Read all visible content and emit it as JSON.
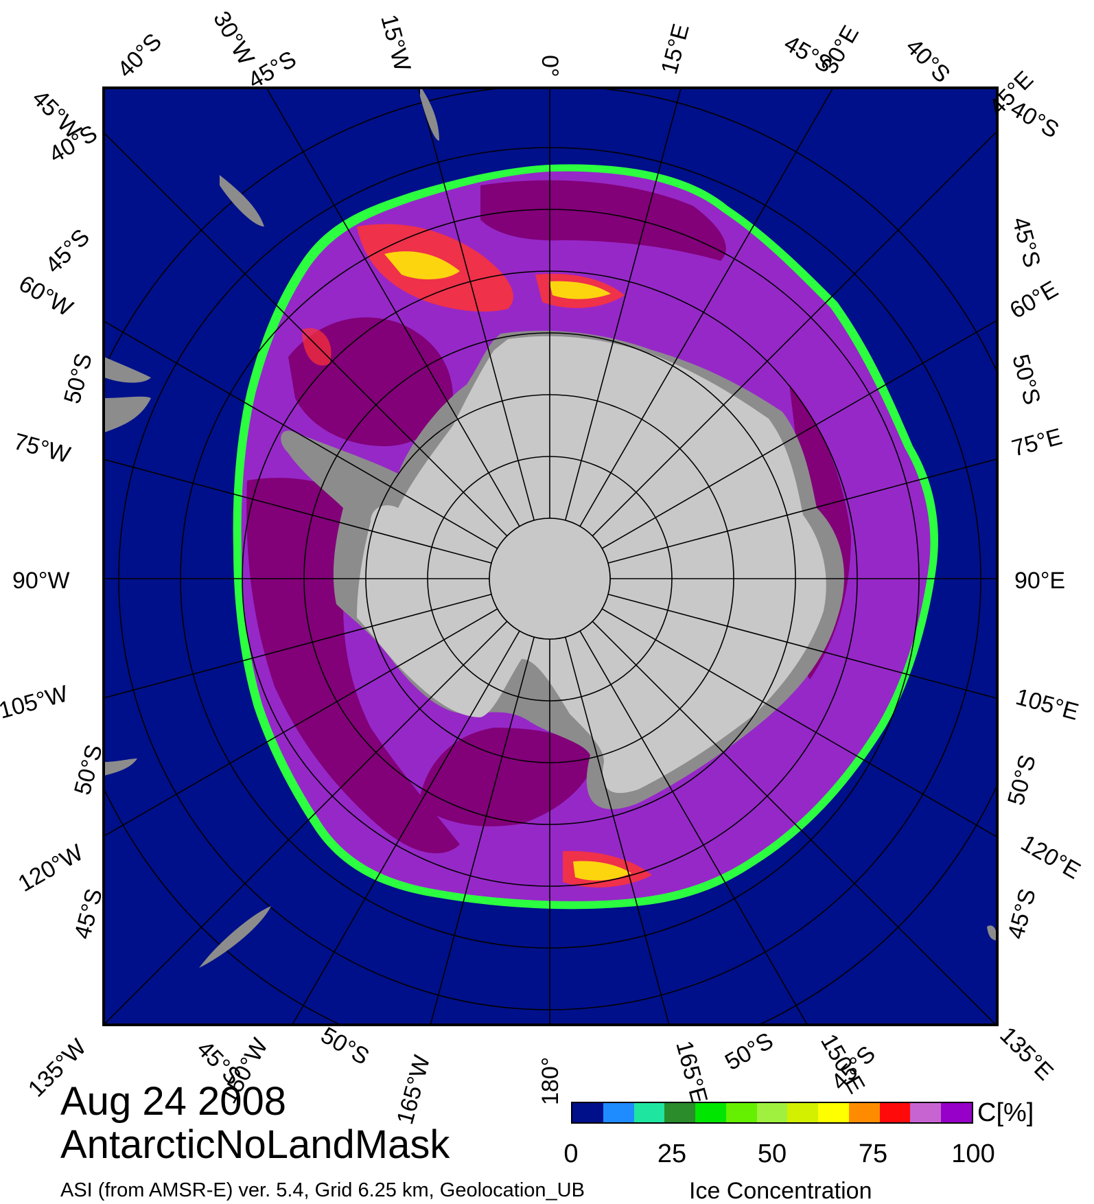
{
  "date_label": "Aug 24 2008",
  "product_label": "AntarcticNoLandMask",
  "footer_text": "ASI (from AMSR-E) ver. 5.4,  Grid 6.25 km, Geolocation_UB",
  "footer_title": "Ice Concentration",
  "colorbar": {
    "unit": "C[%]",
    "ticks": [
      "0",
      "25",
      "50",
      "75",
      "100"
    ],
    "colors": [
      "#00108a",
      "#1e8cff",
      "#1ee6a0",
      "#2a8c2a",
      "#00e600",
      "#64f000",
      "#a0f040",
      "#d2f000",
      "#ffff00",
      "#ff8c00",
      "#ff0a0a",
      "#c864d2",
      "#9600c8"
    ]
  },
  "map_colors": {
    "ocean": "#00108a",
    "land": "#c8c8c8",
    "ice_shelf": "#8c8c8c",
    "ice_high": "#820078",
    "ice_mid": "#9628c8",
    "ice_low": "#ff3232",
    "ice_yellow": "#ffff00",
    "ice_green": "#32ff32"
  },
  "grid_labels": {
    "top": [
      "45°W",
      "40°S",
      "30°W",
      "45°S",
      "15°W",
      "0°",
      "15°E",
      "45°S",
      "30°E",
      "40°S",
      "45°E"
    ],
    "left": [
      "40°S",
      "45°S",
      "60°W",
      "50°S",
      "75°W",
      "90°W",
      "105°W",
      "50°S",
      "120°W",
      "45°S"
    ],
    "right": [
      "40°S",
      "45°S",
      "60°E",
      "50°S",
      "75°E",
      "90°E",
      "105°E",
      "50°S",
      "120°E",
      "45°S"
    ],
    "bottom": [
      "135°W",
      "45°S",
      "150°W",
      "50°S",
      "165°W",
      "180°",
      "165°E",
      "50°S",
      "150°E",
      "45°S",
      "135°E"
    ]
  }
}
